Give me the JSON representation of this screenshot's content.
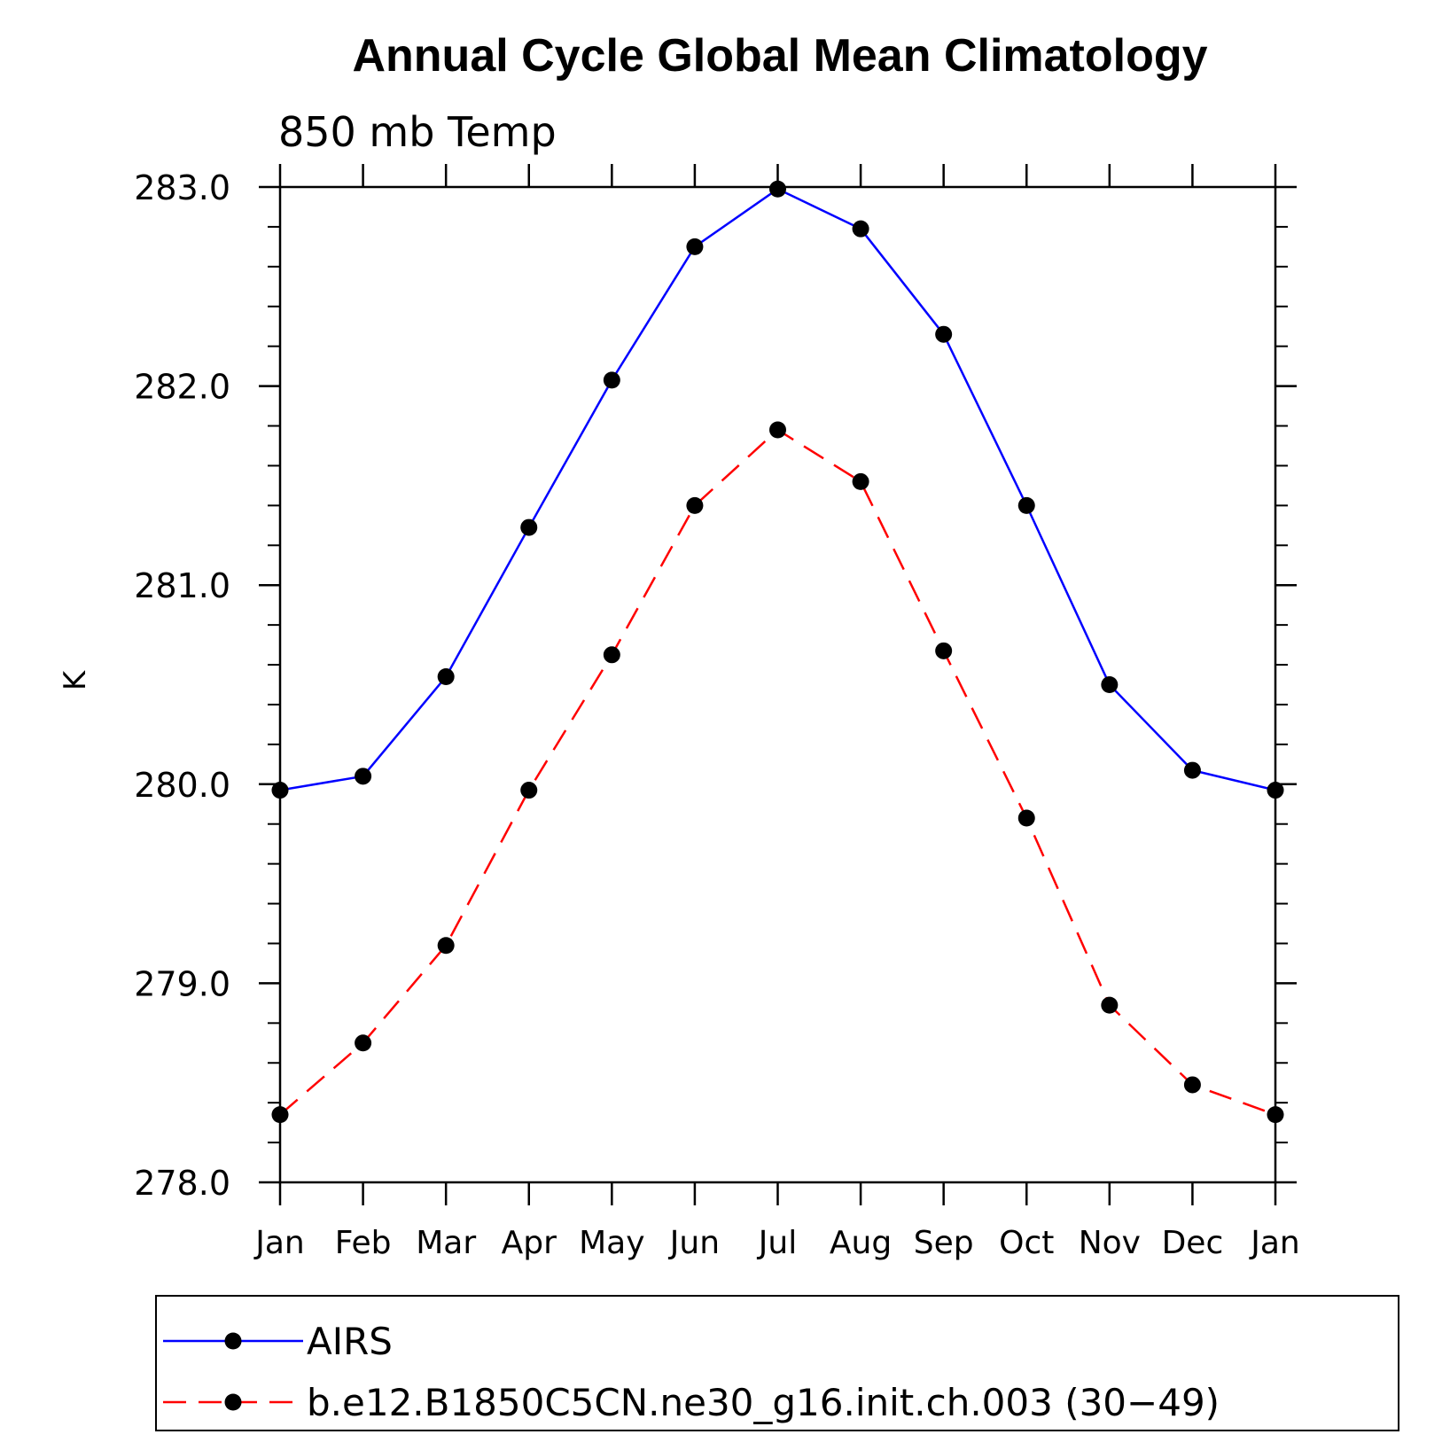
{
  "chart_data": {
    "type": "line",
    "title": "Annual Cycle Global Mean Climatology",
    "subtitle": "850 mb Temp",
    "ylabel": "K",
    "xlabel": "",
    "categories": [
      "Jan",
      "Feb",
      "Mar",
      "Apr",
      "May",
      "Jun",
      "Jul",
      "Aug",
      "Sep",
      "Oct",
      "Nov",
      "Dec",
      "Jan"
    ],
    "ylim": [
      278.0,
      283.0
    ],
    "yticks": [
      "278.0",
      "279.0",
      "280.0",
      "281.0",
      "282.0",
      "283.0"
    ],
    "series": [
      {
        "name": "AIRS",
        "color": "#0000ff",
        "dash": "solid",
        "values": [
          279.97,
          280.04,
          280.54,
          281.29,
          282.03,
          282.7,
          282.99,
          282.79,
          282.26,
          281.4,
          280.5,
          280.07,
          279.97
        ]
      },
      {
        "name": "b.e12.B1850C5CN.ne30_g16.init.ch.003 (30−49)",
        "color": "#ff0000",
        "dash": "dashed",
        "values": [
          278.34,
          278.7,
          279.19,
          279.97,
          280.65,
          281.4,
          281.78,
          281.52,
          280.67,
          279.83,
          278.89,
          278.49,
          278.34
        ]
      }
    ],
    "legend_position": "bottom",
    "grid": false
  }
}
